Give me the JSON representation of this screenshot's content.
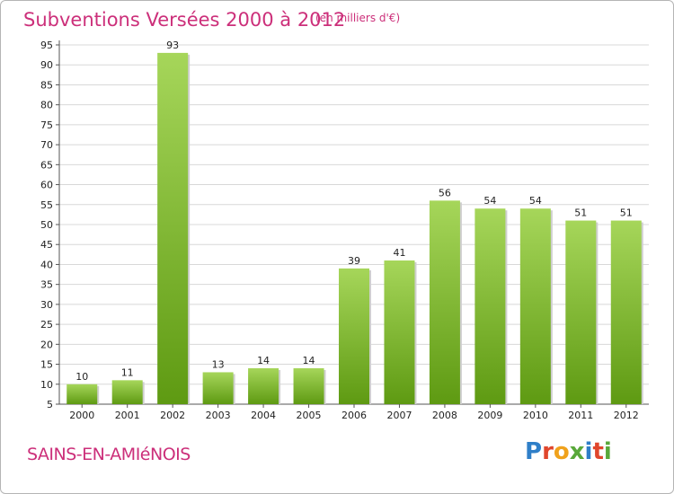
{
  "header": {
    "title": "Subventions Versées 2000 à 2012",
    "subtitle": "(en milliers d'€)"
  },
  "footer": {
    "place_name": "SAINS-EN-AMIéNOIS",
    "logo_text": "Proxiti"
  },
  "colors": {
    "title": "#cc2f7a",
    "bar_light": "#a6d65a",
    "bar_dark": "#5e9a12",
    "grid": "#d8d8d8",
    "logo_letters": [
      "#2f7fc8",
      "#e0462c",
      "#f0a21c",
      "#59a83a",
      "#2f7fc8",
      "#e0462c",
      "#59a83a"
    ]
  },
  "chart_data": {
    "type": "bar",
    "title": "Subventions Versées 2000 à 2012",
    "subtitle": "(en milliers d'€)",
    "categories": [
      "2000",
      "2001",
      "2002",
      "2003",
      "2004",
      "2005",
      "2006",
      "2007",
      "2008",
      "2009",
      "2010",
      "2011",
      "2012"
    ],
    "values": [
      10,
      11,
      93,
      13,
      14,
      14,
      39,
      41,
      56,
      54,
      54,
      51,
      51
    ],
    "ylim": [
      5,
      95
    ],
    "yticks": [
      5,
      10,
      15,
      20,
      25,
      30,
      35,
      40,
      45,
      50,
      55,
      60,
      65,
      70,
      75,
      80,
      85,
      90,
      95
    ],
    "grid": true,
    "data_labels": true,
    "legend": "none"
  }
}
